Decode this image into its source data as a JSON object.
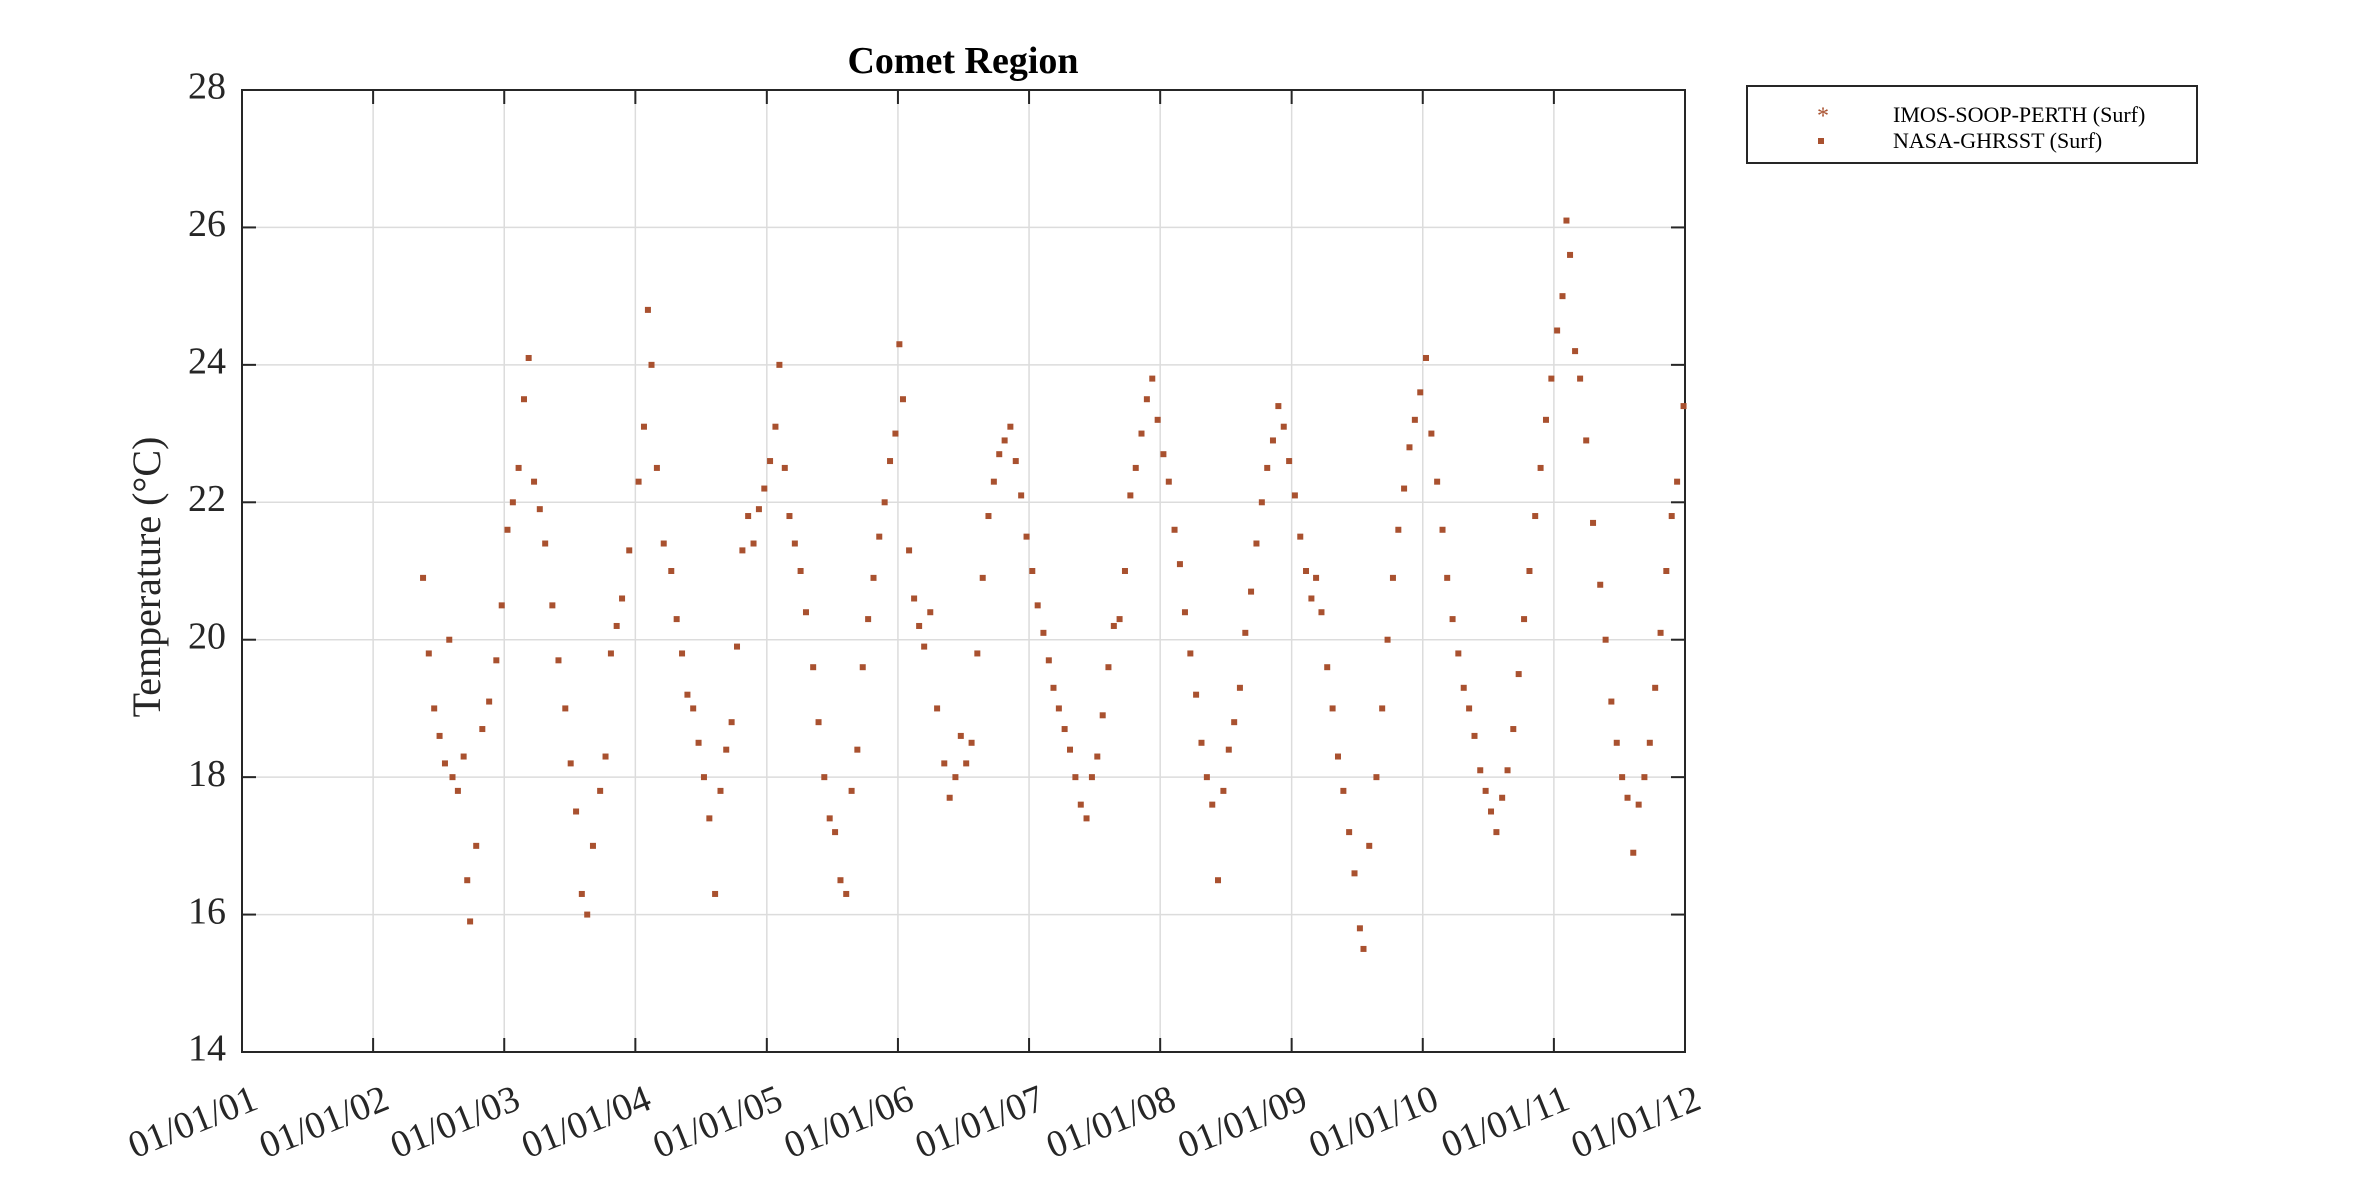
{
  "chart_data": {
    "type": "scatter",
    "title": "Comet Region",
    "xlabel": "",
    "ylabel": "Temperature (°C)",
    "x_ticks": [
      "01/01/01",
      "01/01/02",
      "01/01/03",
      "01/01/04",
      "01/01/05",
      "01/01/06",
      "01/01/07",
      "01/01/08",
      "01/01/09",
      "01/01/10",
      "01/01/11",
      "01/01/12"
    ],
    "xlim": [
      "2001-01-01",
      "2012-01-01"
    ],
    "ylim": [
      14,
      28
    ],
    "y_ticks": [
      14,
      16,
      18,
      20,
      22,
      24,
      26,
      28
    ],
    "grid": true,
    "legend_position": "outside-top-right",
    "marker_color": "#A9512F",
    "series": [
      {
        "name": "IMOS-SOOP-PERTH (Surf)",
        "marker": "asterisk",
        "points": []
      },
      {
        "name": "NASA-GHRSST (Surf)",
        "marker": "square",
        "points": [
          [
            "2002-05-20",
            20.9
          ],
          [
            "2002-06-05",
            19.8
          ],
          [
            "2002-06-20",
            19.0
          ],
          [
            "2002-07-05",
            18.6
          ],
          [
            "2002-07-20",
            18.2
          ],
          [
            "2002-08-01",
            20.0
          ],
          [
            "2002-08-10",
            18.0
          ],
          [
            "2002-08-25",
            17.8
          ],
          [
            "2002-09-10",
            18.3
          ],
          [
            "2002-09-20",
            16.5
          ],
          [
            "2002-09-28",
            15.9
          ],
          [
            "2002-10-15",
            17.0
          ],
          [
            "2002-11-01",
            18.7
          ],
          [
            "2002-11-20",
            19.1
          ],
          [
            "2002-12-10",
            19.7
          ],
          [
            "2002-12-25",
            20.5
          ],
          [
            "2003-01-10",
            21.6
          ],
          [
            "2003-01-25",
            22.0
          ],
          [
            "2003-02-10",
            22.5
          ],
          [
            "2003-02-25",
            23.5
          ],
          [
            "2003-03-10",
            24.1
          ],
          [
            "2003-03-25",
            22.3
          ],
          [
            "2003-04-10",
            21.9
          ],
          [
            "2003-04-25",
            21.4
          ],
          [
            "2003-05-15",
            20.5
          ],
          [
            "2003-06-01",
            19.7
          ],
          [
            "2003-06-20",
            19.0
          ],
          [
            "2003-07-05",
            18.2
          ],
          [
            "2003-07-20",
            17.5
          ],
          [
            "2003-08-05",
            16.3
          ],
          [
            "2003-08-20",
            16.0
          ],
          [
            "2003-09-05",
            17.0
          ],
          [
            "2003-09-25",
            17.8
          ],
          [
            "2003-10-10",
            18.3
          ],
          [
            "2003-10-25",
            19.8
          ],
          [
            "2003-11-10",
            20.2
          ],
          [
            "2003-11-25",
            20.6
          ],
          [
            "2003-12-15",
            21.3
          ],
          [
            "2004-01-10",
            22.3
          ],
          [
            "2004-01-25",
            23.1
          ],
          [
            "2004-02-05",
            24.8
          ],
          [
            "2004-02-15",
            24.0
          ],
          [
            "2004-03-01",
            22.5
          ],
          [
            "2004-03-20",
            21.4
          ],
          [
            "2004-04-10",
            21.0
          ],
          [
            "2004-04-25",
            20.3
          ],
          [
            "2004-05-10",
            19.8
          ],
          [
            "2004-05-25",
            19.2
          ],
          [
            "2004-06-10",
            19.0
          ],
          [
            "2004-06-25",
            18.5
          ],
          [
            "2004-07-10",
            18.0
          ],
          [
            "2004-07-25",
            17.4
          ],
          [
            "2004-08-10",
            16.3
          ],
          [
            "2004-08-25",
            17.8
          ],
          [
            "2004-09-10",
            18.4
          ],
          [
            "2004-09-25",
            18.8
          ],
          [
            "2004-10-10",
            19.9
          ],
          [
            "2004-10-25",
            21.3
          ],
          [
            "2004-11-10",
            21.8
          ],
          [
            "2004-11-25",
            21.4
          ],
          [
            "2004-12-10",
            21.9
          ],
          [
            "2004-12-25",
            22.2
          ],
          [
            "2005-01-10",
            22.6
          ],
          [
            "2005-01-25",
            23.1
          ],
          [
            "2005-02-05",
            24.0
          ],
          [
            "2005-02-20",
            22.5
          ],
          [
            "2005-03-05",
            21.8
          ],
          [
            "2005-03-20",
            21.4
          ],
          [
            "2005-04-05",
            21.0
          ],
          [
            "2005-04-20",
            20.4
          ],
          [
            "2005-05-10",
            19.6
          ],
          [
            "2005-05-25",
            18.8
          ],
          [
            "2005-06-10",
            18.0
          ],
          [
            "2005-06-25",
            17.4
          ],
          [
            "2005-07-10",
            17.2
          ],
          [
            "2005-07-25",
            16.5
          ],
          [
            "2005-08-10",
            16.3
          ],
          [
            "2005-08-25",
            17.8
          ],
          [
            "2005-09-10",
            18.4
          ],
          [
            "2005-09-25",
            19.6
          ],
          [
            "2005-10-10",
            20.3
          ],
          [
            "2005-10-25",
            20.9
          ],
          [
            "2005-11-10",
            21.5
          ],
          [
            "2005-11-25",
            22.0
          ],
          [
            "2005-12-10",
            22.6
          ],
          [
            "2005-12-25",
            23.0
          ],
          [
            "2006-01-05",
            24.3
          ],
          [
            "2006-01-15",
            23.5
          ],
          [
            "2006-02-01",
            21.3
          ],
          [
            "2006-02-15",
            20.6
          ],
          [
            "2006-03-01",
            20.2
          ],
          [
            "2006-03-15",
            19.9
          ],
          [
            "2006-04-01",
            20.4
          ],
          [
            "2006-04-20",
            19.0
          ],
          [
            "2006-05-10",
            18.2
          ],
          [
            "2006-05-25",
            17.7
          ],
          [
            "2006-06-10",
            18.0
          ],
          [
            "2006-06-25",
            18.6
          ],
          [
            "2006-07-10",
            18.2
          ],
          [
            "2006-07-25",
            18.5
          ],
          [
            "2006-08-10",
            19.8
          ],
          [
            "2006-08-25",
            20.9
          ],
          [
            "2006-09-10",
            21.8
          ],
          [
            "2006-09-25",
            22.3
          ],
          [
            "2006-10-10",
            22.7
          ],
          [
            "2006-10-25",
            22.9
          ],
          [
            "2006-11-10",
            23.1
          ],
          [
            "2006-11-25",
            22.6
          ],
          [
            "2006-12-10",
            22.1
          ],
          [
            "2006-12-25",
            21.5
          ],
          [
            "2007-01-10",
            21.0
          ],
          [
            "2007-01-25",
            20.5
          ],
          [
            "2007-02-10",
            20.1
          ],
          [
            "2007-02-25",
            19.7
          ],
          [
            "2007-03-10",
            19.3
          ],
          [
            "2007-03-25",
            19.0
          ],
          [
            "2007-04-10",
            18.7
          ],
          [
            "2007-04-25",
            18.4
          ],
          [
            "2007-05-10",
            18.0
          ],
          [
            "2007-05-25",
            17.6
          ],
          [
            "2007-06-10",
            17.4
          ],
          [
            "2007-06-25",
            18.0
          ],
          [
            "2007-07-10",
            18.3
          ],
          [
            "2007-07-25",
            18.9
          ],
          [
            "2007-08-10",
            19.6
          ],
          [
            "2007-08-25",
            20.2
          ],
          [
            "2007-09-10",
            20.3
          ],
          [
            "2007-09-25",
            21.0
          ],
          [
            "2007-10-10",
            22.1
          ],
          [
            "2007-10-25",
            22.5
          ],
          [
            "2007-11-10",
            23.0
          ],
          [
            "2007-11-25",
            23.5
          ],
          [
            "2007-12-10",
            23.8
          ],
          [
            "2007-12-25",
            23.2
          ],
          [
            "2008-01-10",
            22.7
          ],
          [
            "2008-01-25",
            22.3
          ],
          [
            "2008-02-10",
            21.6
          ],
          [
            "2008-02-25",
            21.1
          ],
          [
            "2008-03-10",
            20.4
          ],
          [
            "2008-03-25",
            19.8
          ],
          [
            "2008-04-10",
            19.2
          ],
          [
            "2008-04-25",
            18.5
          ],
          [
            "2008-05-10",
            18.0
          ],
          [
            "2008-05-25",
            17.6
          ],
          [
            "2008-06-10",
            16.5
          ],
          [
            "2008-06-25",
            17.8
          ],
          [
            "2008-07-10",
            18.4
          ],
          [
            "2008-07-25",
            18.8
          ],
          [
            "2008-08-10",
            19.3
          ],
          [
            "2008-08-25",
            20.1
          ],
          [
            "2008-09-10",
            20.7
          ],
          [
            "2008-09-25",
            21.4
          ],
          [
            "2008-10-10",
            22.0
          ],
          [
            "2008-10-25",
            22.5
          ],
          [
            "2008-11-10",
            22.9
          ],
          [
            "2008-11-25",
            23.4
          ],
          [
            "2008-12-10",
            23.1
          ],
          [
            "2008-12-25",
            22.6
          ],
          [
            "2009-01-10",
            22.1
          ],
          [
            "2009-01-25",
            21.5
          ],
          [
            "2009-02-10",
            21.0
          ],
          [
            "2009-02-25",
            20.6
          ],
          [
            "2009-03-10",
            20.9
          ],
          [
            "2009-03-25",
            20.4
          ],
          [
            "2009-04-10",
            19.6
          ],
          [
            "2009-04-25",
            19.0
          ],
          [
            "2009-05-10",
            18.3
          ],
          [
            "2009-05-25",
            17.8
          ],
          [
            "2009-06-10",
            17.2
          ],
          [
            "2009-06-25",
            16.6
          ],
          [
            "2009-07-10",
            15.8
          ],
          [
            "2009-07-20",
            15.5
          ],
          [
            "2009-08-05",
            17.0
          ],
          [
            "2009-08-25",
            18.0
          ],
          [
            "2009-09-10",
            19.0
          ],
          [
            "2009-09-25",
            20.0
          ],
          [
            "2009-10-10",
            20.9
          ],
          [
            "2009-10-25",
            21.6
          ],
          [
            "2009-11-10",
            22.2
          ],
          [
            "2009-11-25",
            22.8
          ],
          [
            "2009-12-10",
            23.2
          ],
          [
            "2009-12-25",
            23.6
          ],
          [
            "2010-01-10",
            24.1
          ],
          [
            "2010-01-25",
            23.0
          ],
          [
            "2010-02-10",
            22.3
          ],
          [
            "2010-02-25",
            21.6
          ],
          [
            "2010-03-10",
            20.9
          ],
          [
            "2010-03-25",
            20.3
          ],
          [
            "2010-04-10",
            19.8
          ],
          [
            "2010-04-25",
            19.3
          ],
          [
            "2010-05-10",
            19.0
          ],
          [
            "2010-05-25",
            18.6
          ],
          [
            "2010-06-10",
            18.1
          ],
          [
            "2010-06-25",
            17.8
          ],
          [
            "2010-07-10",
            17.5
          ],
          [
            "2010-07-25",
            17.2
          ],
          [
            "2010-08-10",
            17.7
          ],
          [
            "2010-08-25",
            18.1
          ],
          [
            "2010-09-10",
            18.7
          ],
          [
            "2010-09-25",
            19.5
          ],
          [
            "2010-10-10",
            20.3
          ],
          [
            "2010-10-25",
            21.0
          ],
          [
            "2010-11-10",
            21.8
          ],
          [
            "2010-11-25",
            22.5
          ],
          [
            "2010-12-10",
            23.2
          ],
          [
            "2010-12-25",
            23.8
          ],
          [
            "2011-01-10",
            24.5
          ],
          [
            "2011-01-25",
            25.0
          ],
          [
            "2011-02-05",
            26.1
          ],
          [
            "2011-02-15",
            25.6
          ],
          [
            "2011-03-01",
            24.2
          ],
          [
            "2011-03-15",
            23.8
          ],
          [
            "2011-04-01",
            22.9
          ],
          [
            "2011-04-20",
            21.7
          ],
          [
            "2011-05-10",
            20.8
          ],
          [
            "2011-05-25",
            20.0
          ],
          [
            "2011-06-10",
            19.1
          ],
          [
            "2011-06-25",
            18.5
          ],
          [
            "2011-07-10",
            18.0
          ],
          [
            "2011-07-25",
            17.7
          ],
          [
            "2011-08-10",
            16.9
          ],
          [
            "2011-08-25",
            17.6
          ],
          [
            "2011-09-10",
            18.0
          ],
          [
            "2011-09-25",
            18.5
          ],
          [
            "2011-10-10",
            19.3
          ],
          [
            "2011-10-25",
            20.1
          ],
          [
            "2011-11-10",
            21.0
          ],
          [
            "2011-11-25",
            21.8
          ],
          [
            "2011-12-10",
            22.3
          ],
          [
            "2011-12-28",
            23.4
          ]
        ]
      }
    ]
  }
}
